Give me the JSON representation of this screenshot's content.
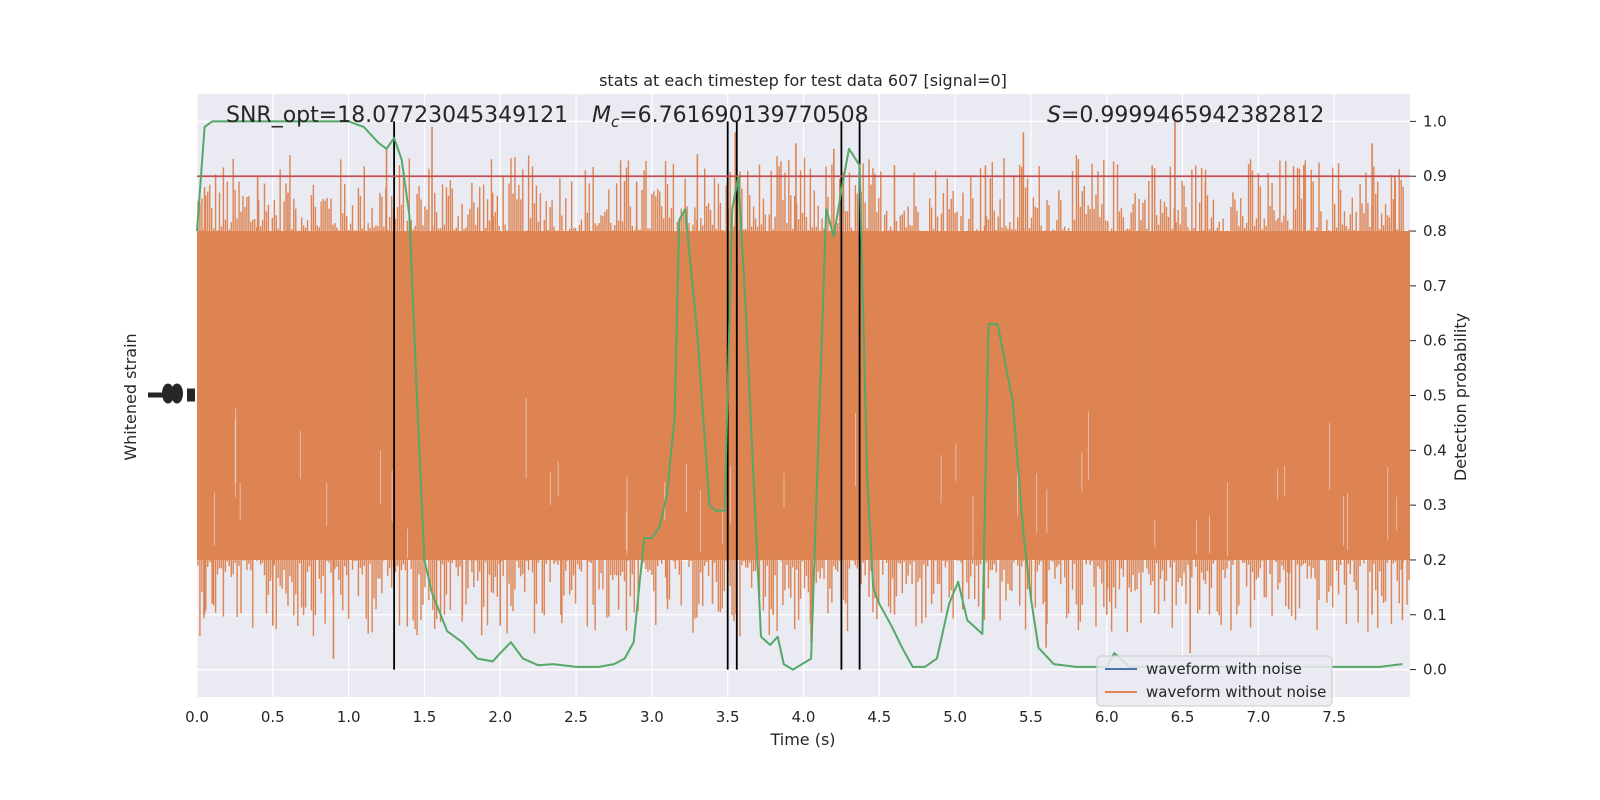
{
  "chart_data": {
    "type": "line",
    "title": "stats at each timestep for test data 607 [signal=0]",
    "xlabel": "Time (s)",
    "ylabel_left": "Whitened strain",
    "ylabel_right": "Detection probability",
    "xlim": [
      0,
      8
    ],
    "ylim_right": [
      -0.05,
      1.05
    ],
    "x_ticks": [
      "0.0",
      "0.5",
      "1.0",
      "1.5",
      "2.0",
      "2.5",
      "3.0",
      "3.5",
      "4.0",
      "4.5",
      "5.0",
      "5.5",
      "6.0",
      "6.5",
      "7.0",
      "7.5"
    ],
    "y_ticks_right": [
      "0.0",
      "0.1",
      "0.2",
      "0.3",
      "0.4",
      "0.5",
      "0.6",
      "0.7",
      "0.8",
      "0.9",
      "1.0"
    ],
    "grid": true,
    "annotations": {
      "snr": "SNR_opt=18.07723045349121",
      "mc_symbol": "M",
      "mc_sub": "c",
      "mc_value": "=6.761690139770508",
      "s_symbol": "S",
      "s_value": "=0.9999465942382812"
    },
    "threshold": 0.9,
    "vertical_lines": [
      1.3,
      3.5,
      3.56,
      4.25,
      4.37
    ],
    "legend": {
      "placement": "lower-right",
      "entries": [
        "waveform with noise",
        "waveform without noise"
      ]
    },
    "series": [
      {
        "name": "waveform with noise",
        "color": "#4c72b0",
        "note_values": "strain trace largely hidden behind orange trace"
      },
      {
        "name": "waveform without noise",
        "color": "#dd8452",
        "band_range": [
          0.2,
          0.8
        ],
        "peak_x": [
          0.05,
          0.4,
          0.6,
          1.25,
          1.55,
          1.95,
          2.9,
          3.3,
          3.55,
          3.95,
          4.2,
          4.6,
          5.2,
          5.45,
          6.3,
          6.45,
          6.65,
          7.3,
          7.75,
          7.9
        ],
        "peak_hi": [
          0.88,
          0.9,
          0.87,
          0.95,
          0.99,
          0.87,
          0.89,
          0.94,
          0.98,
          0.96,
          0.95,
          0.92,
          0.92,
          0.98,
          0.92,
          1.0,
          0.89,
          0.92,
          0.96,
          0.9
        ],
        "trough_x": [
          0.05,
          0.1,
          0.5,
          0.9,
          1.75,
          2.0,
          2.4,
          3.1,
          3.4,
          3.8,
          4.05,
          4.25,
          4.6,
          5.05,
          5.6,
          6.0,
          6.55,
          7.2,
          7.75,
          7.95
        ],
        "trough_lo": [
          0.1,
          0.12,
          0.08,
          0.02,
          0.1,
          0.08,
          0.1,
          0.13,
          0.12,
          0.1,
          0.05,
          0.0,
          0.1,
          0.11,
          0.04,
          0.1,
          0.03,
          0.11,
          0.1,
          0.09
        ]
      },
      {
        "name": "detection probability",
        "color": "#55a868",
        "x": [
          0.0,
          0.05,
          0.1,
          0.2,
          0.3,
          0.5,
          0.7,
          0.9,
          1.0,
          1.1,
          1.2,
          1.25,
          1.3,
          1.35,
          1.4,
          1.45,
          1.5,
          1.55,
          1.65,
          1.75,
          1.85,
          1.95,
          2.0,
          2.07,
          2.15,
          2.25,
          2.35,
          2.5,
          2.65,
          2.75,
          2.82,
          2.88,
          2.92,
          2.95,
          3.0,
          3.05,
          3.1,
          3.15,
          3.18,
          3.22,
          3.3,
          3.38,
          3.42,
          3.48,
          3.53,
          3.57,
          3.62,
          3.67,
          3.72,
          3.78,
          3.83,
          3.87,
          3.93,
          4.05,
          4.15,
          4.2,
          4.26,
          4.3,
          4.37,
          4.42,
          4.46,
          4.5,
          4.58,
          4.65,
          4.72,
          4.8,
          4.88,
          4.96,
          5.02,
          5.08,
          5.18,
          5.22,
          5.28,
          5.38,
          5.45,
          5.5,
          5.55,
          5.65,
          5.8,
          5.9,
          6.0,
          6.05,
          6.15,
          6.3,
          6.5,
          7.0,
          7.5,
          7.8,
          7.95
        ],
        "y": [
          0.8,
          0.99,
          1.0,
          1.0,
          1.0,
          1.0,
          1.0,
          1.0,
          1.0,
          0.99,
          0.96,
          0.95,
          0.97,
          0.93,
          0.83,
          0.5,
          0.2,
          0.14,
          0.07,
          0.05,
          0.02,
          0.015,
          0.03,
          0.05,
          0.02,
          0.008,
          0.01,
          0.005,
          0.005,
          0.01,
          0.02,
          0.05,
          0.16,
          0.24,
          0.24,
          0.26,
          0.32,
          0.46,
          0.82,
          0.84,
          0.61,
          0.3,
          0.29,
          0.29,
          0.84,
          0.9,
          0.65,
          0.35,
          0.06,
          0.045,
          0.06,
          0.01,
          0.0,
          0.02,
          0.84,
          0.79,
          0.89,
          0.95,
          0.92,
          0.35,
          0.15,
          0.12,
          0.08,
          0.04,
          0.005,
          0.005,
          0.02,
          0.12,
          0.16,
          0.09,
          0.065,
          0.63,
          0.63,
          0.49,
          0.25,
          0.13,
          0.04,
          0.01,
          0.005,
          0.005,
          0.005,
          0.03,
          0.005,
          0.005,
          0.005,
          0.005,
          0.005,
          0.005,
          0.01
        ]
      }
    ]
  }
}
